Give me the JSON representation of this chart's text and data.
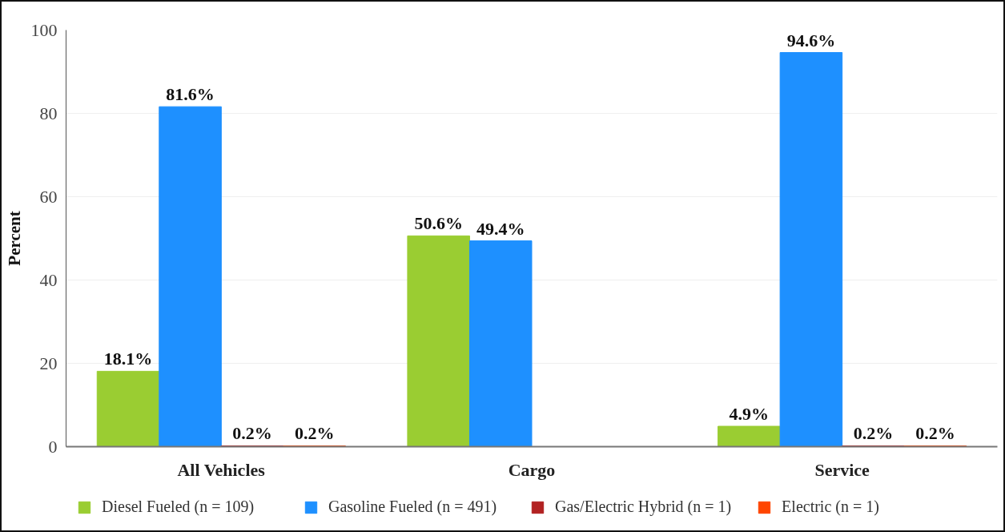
{
  "chart_data": {
    "type": "bar",
    "ylabel": "Percent",
    "categories": [
      "All Vehicles",
      "Cargo",
      "Service"
    ],
    "series": [
      {
        "name": "Diesel Fueled (n = 109)",
        "color": "#9acd32",
        "values": [
          18.1,
          50.6,
          4.9
        ],
        "value_labels": [
          "18.1%",
          "50.6%",
          "4.9%"
        ]
      },
      {
        "name": "Gasoline Fueled (n = 491)",
        "color": "#1e90ff",
        "values": [
          81.6,
          49.4,
          94.6
        ],
        "value_labels": [
          "81.6%",
          "49.4%",
          "94.6%"
        ]
      },
      {
        "name": "Gas/Electric Hybrid (n = 1)",
        "color": "#b22222",
        "values": [
          0.2,
          null,
          0.2
        ],
        "value_labels": [
          "0.2%",
          null,
          "0.2%"
        ]
      },
      {
        "name": "Electric (n = 1)",
        "color": "#ff4500",
        "values": [
          0.2,
          null,
          0.2
        ],
        "value_labels": [
          "0.2%",
          null,
          "0.2%"
        ]
      }
    ],
    "ylim": [
      0,
      100
    ],
    "yticks": [
      0,
      20,
      40,
      60,
      80,
      100
    ],
    "grid": "y",
    "legend": "bottom"
  }
}
